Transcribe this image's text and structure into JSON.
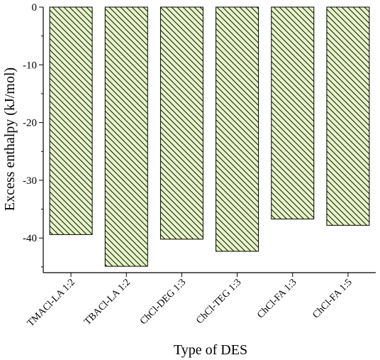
{
  "chart_data": {
    "type": "bar",
    "title": "",
    "xlabel": "Type of DES",
    "ylabel": "Excess enthalpy (kJ/mol)",
    "categories": [
      "TMACl-LA 1:2",
      "TBACl-LA 1:2",
      "ChCl-DEG 1:3",
      "ChCl-TEG 1:3",
      "ChCl-FA 1:3",
      "ChCl-FA 1:5"
    ],
    "values": [
      -39.4,
      -44.9,
      -40.2,
      -42.3,
      -36.7,
      -37.8
    ],
    "ylim": [
      -46,
      0
    ],
    "yticks": [
      0,
      -10,
      -20,
      -30,
      -40
    ],
    "grid": false,
    "bar_fill": "#e6f5c6",
    "bar_stroke": "#000000",
    "bar_pattern": "diagonal-hatch"
  }
}
